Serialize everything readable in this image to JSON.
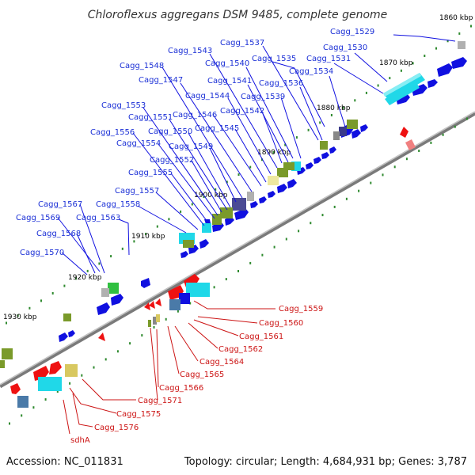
{
  "title": "Chloroflexus aggregans DSM 9485, complete genome",
  "footer": {
    "accession": "Accession: NC_011831",
    "summary": "Topology: circular; Length: 4,684,931 bp; Genes: 3,787"
  },
  "colors": {
    "backbone": "#8a8a8a",
    "tick": "#2f8a2f",
    "forward_label": "#1a2fd6",
    "reverse_label": "#cc1414",
    "gene_blue": "#1010e0",
    "gene_red": "#ee1111",
    "gene_cyan": "#20d8e8",
    "gene_olive": "#7a9a2a",
    "gene_navy": "#3a3a8a",
    "gene_grey": "#b0b0b0",
    "gene_yellow": "#eee8a0",
    "gene_green": "#30c040",
    "gene_steel": "#4a7aa8"
  },
  "scale_labels": [
    "1860 kbp",
    "1870 kbp",
    "1880 kbp",
    "1890 kbp",
    "1900 kbp",
    "1910 kbp",
    "1920 kbp",
    "1930 kbp"
  ],
  "forward_genes": [
    "Cagg_1529",
    "Cagg_1530",
    "Cagg_1531",
    "Cagg_1534",
    "Cagg_1535",
    "Cagg_1536",
    "Cagg_1537",
    "Cagg_1539",
    "Cagg_1540",
    "Cagg_1541",
    "Cagg_1542",
    "Cagg_1543",
    "Cagg_1544",
    "Cagg_1545",
    "Cagg_1546",
    "Cagg_1547",
    "Cagg_1548",
    "Cagg_1549",
    "Cagg_1550",
    "Cagg_1551",
    "Cagg_1552",
    "Cagg_1553",
    "Cagg_1554",
    "Cagg_1555",
    "Cagg_1556",
    "Cagg_1557",
    "Cagg_1558",
    "Cagg_1563",
    "Cagg_1567",
    "Cagg_1568",
    "Cagg_1569",
    "Cagg_1570"
  ],
  "reverse_genes": [
    "Cagg_1559",
    "Cagg_1560",
    "Cagg_1561",
    "Cagg_1562",
    "Cagg_1564",
    "Cagg_1565",
    "Cagg_1566",
    "Cagg_1571",
    "Cagg_1575",
    "Cagg_1576",
    "sdhA"
  ]
}
